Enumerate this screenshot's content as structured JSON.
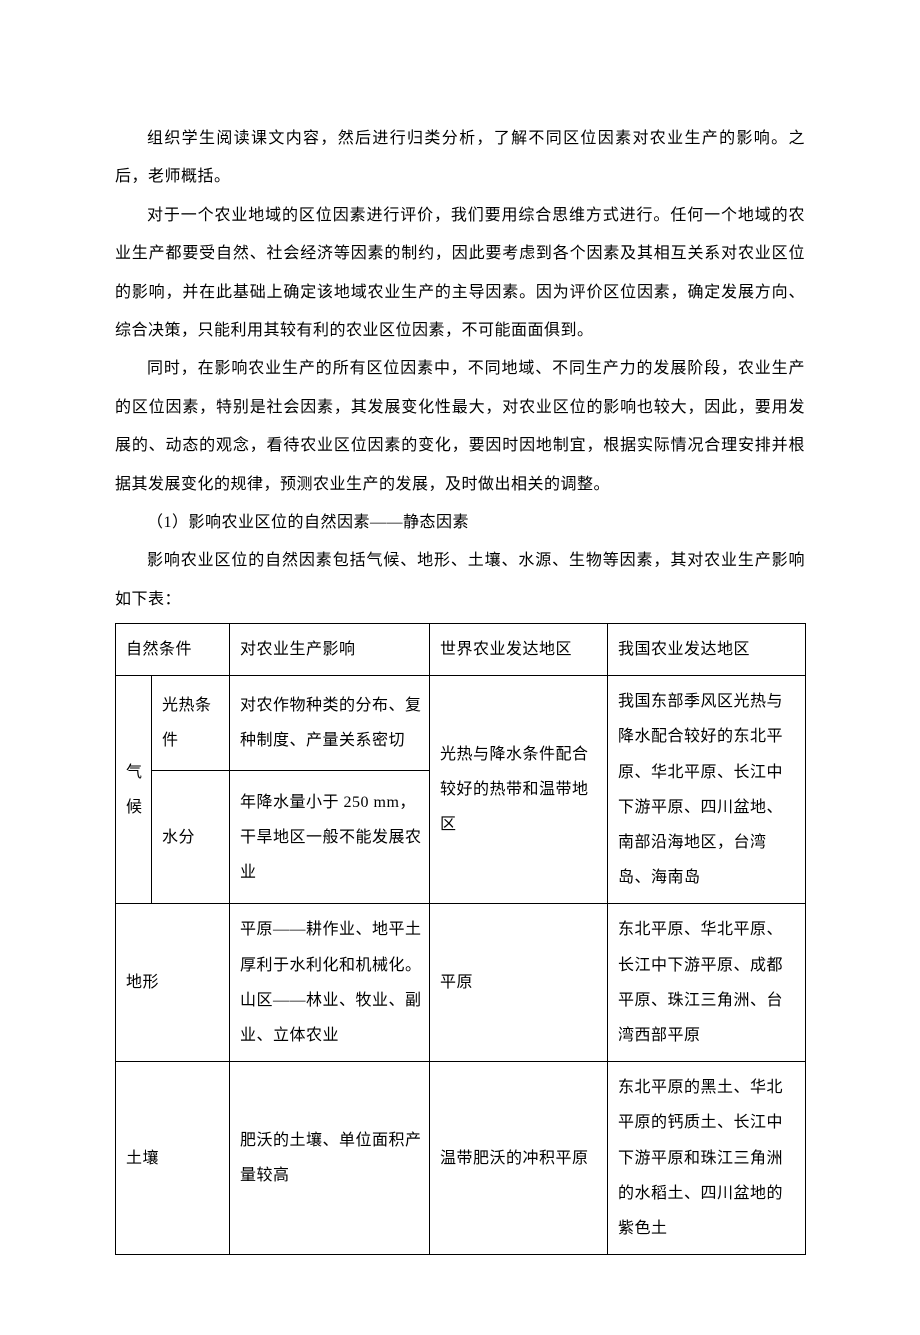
{
  "paragraphs": {
    "p1": "组织学生阅读课文内容，然后进行归类分析，了解不同区位因素对农业生产的影响。之后，老师概括。",
    "p2": "对于一个农业地域的区位因素进行评价，我们要用综合思维方式进行。任何一个地域的农业生产都要受自然、社会经济等因素的制约，因此要考虑到各个因素及其相互关系对农业区位的影响，并在此基础上确定该地域农业生产的主导因素。因为评价区位因素，确定发展方向、综合决策，只能利用其较有利的农业区位因素，不可能面面俱到。",
    "p3": "同时，在影响农业生产的所有区位因素中，不同地域、不同生产力的发展阶段，农业生产的区位因素，特别是社会因素，其发展变化性最大，对农业区位的影响也较大，因此，要用发展的、动态的观念，看待农业区位因素的变化，要因时因地制宜，根据实际情况合理安排并根据其发展变化的规律，预测农业生产的发展，及时做出相关的调整。",
    "p4": "（1）影响农业区位的自然因素——静态因素",
    "p5": "影响农业区位的自然因素包括气候、地形、土壤、水源、生物等因素，其对农业生产影响如下表："
  },
  "table": {
    "header": {
      "c1": "自然条件",
      "c2": "对农业生产影响",
      "c3": "世界农业发达地区",
      "c4": "我国农业发达地区"
    },
    "rows": {
      "climate_label": "气候",
      "light_heat": "光热条件",
      "light_heat_effect": "对农作物种类的分布、复种制度、产量关系密切",
      "water": "水分",
      "water_effect": "年降水量小于 250 mm，干旱地区一般不能发展农业",
      "climate_world": "光热与降水条件配合较好的热带和温带地区",
      "climate_china": "我国东部季风区光热与降水配合较好的东北平原、华北平原、长江中下游平原、四川盆地、南部沿海地区，台湾岛、海南岛",
      "terrain": "地形",
      "terrain_effect": "平原——耕作业、地平土厚利于水利化和机械化。山区——林业、牧业、副业、立体农业",
      "terrain_world": "平原",
      "terrain_china": "东北平原、华北平原、长江中下游平原、成都平原、珠江三角洲、台湾西部平原",
      "soil": "土壤",
      "soil_effect": "肥沃的土壤、单位面积产量较高",
      "soil_world": "温带肥沃的冲积平原",
      "soil_china": "东北平原的黑土、华北平原的钙质土、长江中下游平原和珠江三角洲的水稻土、四川盆地的紫色土"
    }
  }
}
